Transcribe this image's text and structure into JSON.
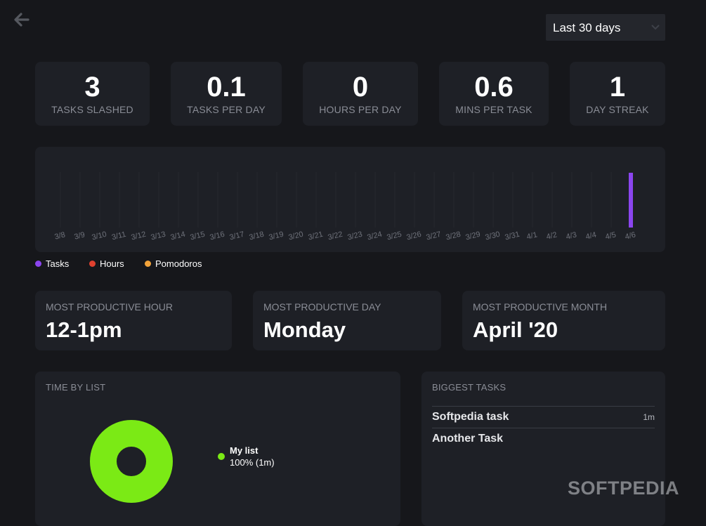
{
  "header": {
    "back_icon": "arrow-left-icon",
    "range": {
      "selected": "Last 30 days",
      "icon": "chevron-down-icon"
    }
  },
  "stats": [
    {
      "value": "3",
      "label": "TASKS SLASHED"
    },
    {
      "value": "0.1",
      "label": "TASKS PER DAY"
    },
    {
      "value": "0",
      "label": "HOURS PER DAY"
    },
    {
      "value": "0.6",
      "label": "MINS PER TASK"
    },
    {
      "value": "1",
      "label": "DAY STREAK"
    }
  ],
  "chart_data": {
    "type": "bar",
    "categories": [
      "3/8",
      "3/9",
      "3/10",
      "3/11",
      "3/12",
      "3/13",
      "3/14",
      "3/15",
      "3/16",
      "3/17",
      "3/18",
      "3/19",
      "3/20",
      "3/21",
      "3/22",
      "3/23",
      "3/24",
      "3/25",
      "3/26",
      "3/27",
      "3/28",
      "3/29",
      "3/30",
      "3/31",
      "4/1",
      "4/2",
      "4/3",
      "4/4",
      "4/5",
      "4/6"
    ],
    "series": [
      {
        "name": "Tasks",
        "color": "#8b45ef",
        "values": [
          0,
          0,
          0,
          0,
          0,
          0,
          0,
          0,
          0,
          0,
          0,
          0,
          0,
          0,
          0,
          0,
          0,
          0,
          0,
          0,
          0,
          0,
          0,
          0,
          0,
          0,
          0,
          0,
          0,
          3
        ]
      },
      {
        "name": "Hours",
        "color": "#e0412f",
        "values": [
          0,
          0,
          0,
          0,
          0,
          0,
          0,
          0,
          0,
          0,
          0,
          0,
          0,
          0,
          0,
          0,
          0,
          0,
          0,
          0,
          0,
          0,
          0,
          0,
          0,
          0,
          0,
          0,
          0,
          0
        ]
      },
      {
        "name": "Pomodoros",
        "color": "#f2a33a",
        "values": [
          0,
          0,
          0,
          0,
          0,
          0,
          0,
          0,
          0,
          0,
          0,
          0,
          0,
          0,
          0,
          0,
          0,
          0,
          0,
          0,
          0,
          0,
          0,
          0,
          0,
          0,
          0,
          0,
          0,
          0
        ]
      }
    ],
    "ylim": [
      0,
      3
    ],
    "grid": false,
    "legend_position": "bottom-left"
  },
  "productive": [
    {
      "label": "MOST PRODUCTIVE HOUR",
      "value": "12-1pm"
    },
    {
      "label": "MOST PRODUCTIVE DAY",
      "value": "Monday"
    },
    {
      "label": "MOST PRODUCTIVE MONTH",
      "value": "April '20"
    }
  ],
  "time_by_list": {
    "title": "TIME BY LIST",
    "items": [
      {
        "name": "My list",
        "share": "100% (1m)",
        "fraction": 1.0,
        "color": "#7bea15"
      }
    ]
  },
  "biggest_tasks": {
    "title": "BIGGEST TASKS",
    "items": [
      {
        "name": "Softpedia task",
        "duration": "1m"
      },
      {
        "name": "Another Task",
        "duration": ""
      }
    ]
  },
  "watermark": "SOFTPEDIA"
}
